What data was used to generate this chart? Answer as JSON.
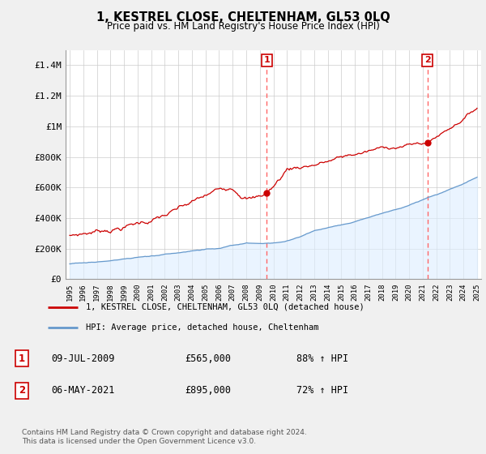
{
  "title": "1, KESTREL CLOSE, CHELTENHAM, GL53 0LQ",
  "subtitle": "Price paid vs. HM Land Registry's House Price Index (HPI)",
  "ylim": [
    0,
    1500000
  ],
  "yticks": [
    0,
    200000,
    400000,
    600000,
    800000,
    1000000,
    1200000,
    1400000
  ],
  "ytick_labels": [
    "£0",
    "£200K",
    "£400K",
    "£600K",
    "£800K",
    "£1M",
    "£1.2M",
    "£1.4M"
  ],
  "xmin_year": 1995,
  "xmax_year": 2025,
  "xtick_years": [
    1995,
    1996,
    1997,
    1998,
    1999,
    2000,
    2001,
    2002,
    2003,
    2004,
    2005,
    2006,
    2007,
    2008,
    2009,
    2010,
    2011,
    2012,
    2013,
    2014,
    2015,
    2016,
    2017,
    2018,
    2019,
    2020,
    2021,
    2022,
    2023,
    2024,
    2025
  ],
  "sale1_year": 2009.52,
  "sale1_price": 565000,
  "sale1_label": "1",
  "sale1_date": "09-JUL-2009",
  "sale1_hpi": "88% ↑ HPI",
  "sale2_year": 2021.35,
  "sale2_price": 895000,
  "sale2_label": "2",
  "sale2_date": "06-MAY-2021",
  "sale2_hpi": "72% ↑ HPI",
  "red_line_color": "#cc0000",
  "blue_line_color": "#6699cc",
  "blue_fill_color": "#ddeeff",
  "dashed_color": "#ff6666",
  "legend_label_red": "1, KESTREL CLOSE, CHELTENHAM, GL53 0LQ (detached house)",
  "legend_label_blue": "HPI: Average price, detached house, Cheltenham",
  "footer": "Contains HM Land Registry data © Crown copyright and database right 2024.\nThis data is licensed under the Open Government Licence v3.0.",
  "background_color": "#f0f0f0",
  "plot_bg_color": "#ffffff"
}
